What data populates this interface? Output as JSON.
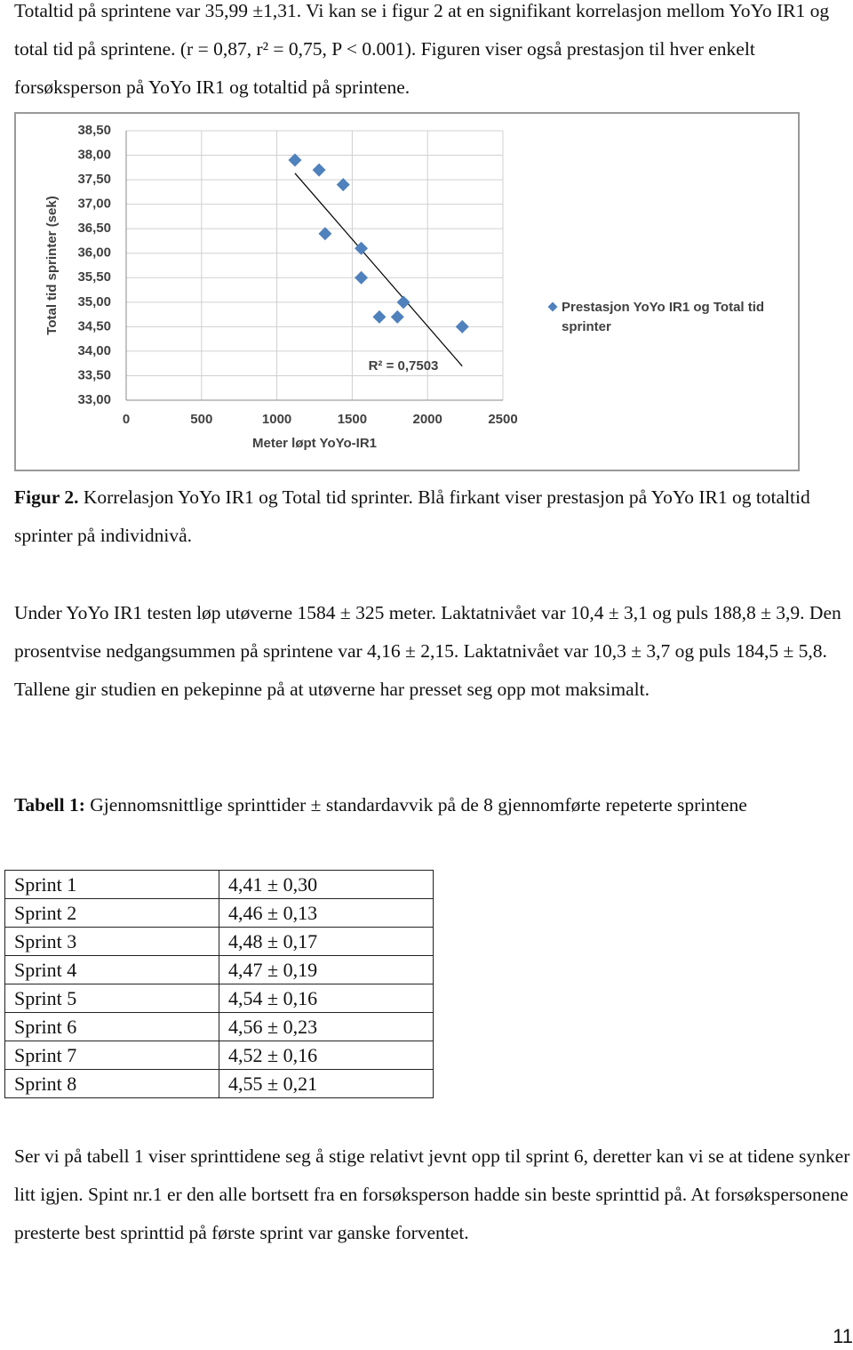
{
  "paragraph_1": "Totaltid på sprintene var 35,99 ±1,31. Vi kan se i figur 2 at en signifikant korrelasjon mellom YoYo IR1 og total tid på sprintene. (r = 0,87, r² = 0,75, P < 0.001). Figuren viser også prestasjon til hver enkelt forsøksperson på YoYo IR1 og totaltid på sprintene.",
  "chart_data": {
    "type": "scatter",
    "x_label": "Meter løpt YoYo-IR1",
    "y_label": "Total tid sprinter (sek)",
    "annotation": "R² = 0,7503",
    "trendline": "linear",
    "grid": true,
    "legend_position": "right",
    "xlim": [
      0,
      2500
    ],
    "xticks": [
      0,
      500,
      1000,
      1500,
      2000,
      2500
    ],
    "ylim": [
      33,
      38.5
    ],
    "yticks": [
      {
        "value": 33,
        "label": "33,00"
      },
      {
        "value": 33.5,
        "label": "33,50"
      },
      {
        "value": 34,
        "label": "34,00"
      },
      {
        "value": 34.5,
        "label": "34,50"
      },
      {
        "value": 35,
        "label": "35,00"
      },
      {
        "value": 35.5,
        "label": "35,50"
      },
      {
        "value": 36,
        "label": "36,00"
      },
      {
        "value": 36.5,
        "label": "36,50"
      },
      {
        "value": 37,
        "label": "37,00"
      },
      {
        "value": 37.5,
        "label": "37,50"
      },
      {
        "value": 38,
        "label": "38,00"
      },
      {
        "value": 38.5,
        "label": "38,50"
      }
    ],
    "series": [
      {
        "name": "Prestasjon YoYo IR1 og Total tid sprinter",
        "color": "#4f81bd",
        "x": [
          1120,
          1280,
          1440,
          1320,
          1560,
          1560,
          1680,
          1800,
          1840,
          2230
        ],
        "values": [
          37.9,
          37.7,
          37.4,
          36.4,
          36.1,
          35.5,
          34.7,
          34.7,
          35.0,
          34.5
        ]
      }
    ]
  },
  "caption": {
    "label": "Figur 2.",
    "text": "Korrelasjon YoYo IR1 og Total tid sprinter. Blå firkant viser prestasjon på YoYo IR1 og totaltid sprinter på individnivå."
  },
  "paragraph_2": "Under YoYo IR1 testen løp utøverne 1584 ± 325 meter. Laktatnivået var 10,4 ± 3,1 og puls 188,8 ± 3,9. Den prosentvise nedgangsummen på sprintene var 4,16 ± 2,15. Laktatnivået var 10,3 ± 3,7 og puls 184,5 ± 5,8. Tallene gir studien en pekepinne på at utøverne har presset seg opp mot maksimalt.",
  "table": {
    "caption_label": "Tabell 1:",
    "caption_text": "Gjennomsnittlige sprinttider ± standardavvik på de 8 gjennomførte repeterte sprintene",
    "rows": [
      [
        "Sprint 1",
        "4,41 ± 0,30"
      ],
      [
        "Sprint 2",
        "4,46 ± 0,13"
      ],
      [
        "Sprint 3",
        "4,48 ± 0,17"
      ],
      [
        "Sprint 4",
        "4,47 ± 0,19"
      ],
      [
        "Sprint 5",
        "4,54 ± 0,16"
      ],
      [
        "Sprint 6",
        "4,56 ± 0,23"
      ],
      [
        "Sprint 7",
        "4,52 ± 0,16"
      ],
      [
        "Sprint 8",
        "4,55 ± 0,21"
      ]
    ]
  },
  "paragraph_3": "Ser vi på tabell 1 viser sprinttidene seg å stige relativt jevnt opp til sprint 6, deretter kan vi se at tidene synker litt igjen. Spint nr.1 er den alle bortsett fra en forsøksperson hadde sin beste sprinttid på. At forsøkspersonene presterte best sprinttid på første sprint var ganske forventet.",
  "page_number": "11"
}
